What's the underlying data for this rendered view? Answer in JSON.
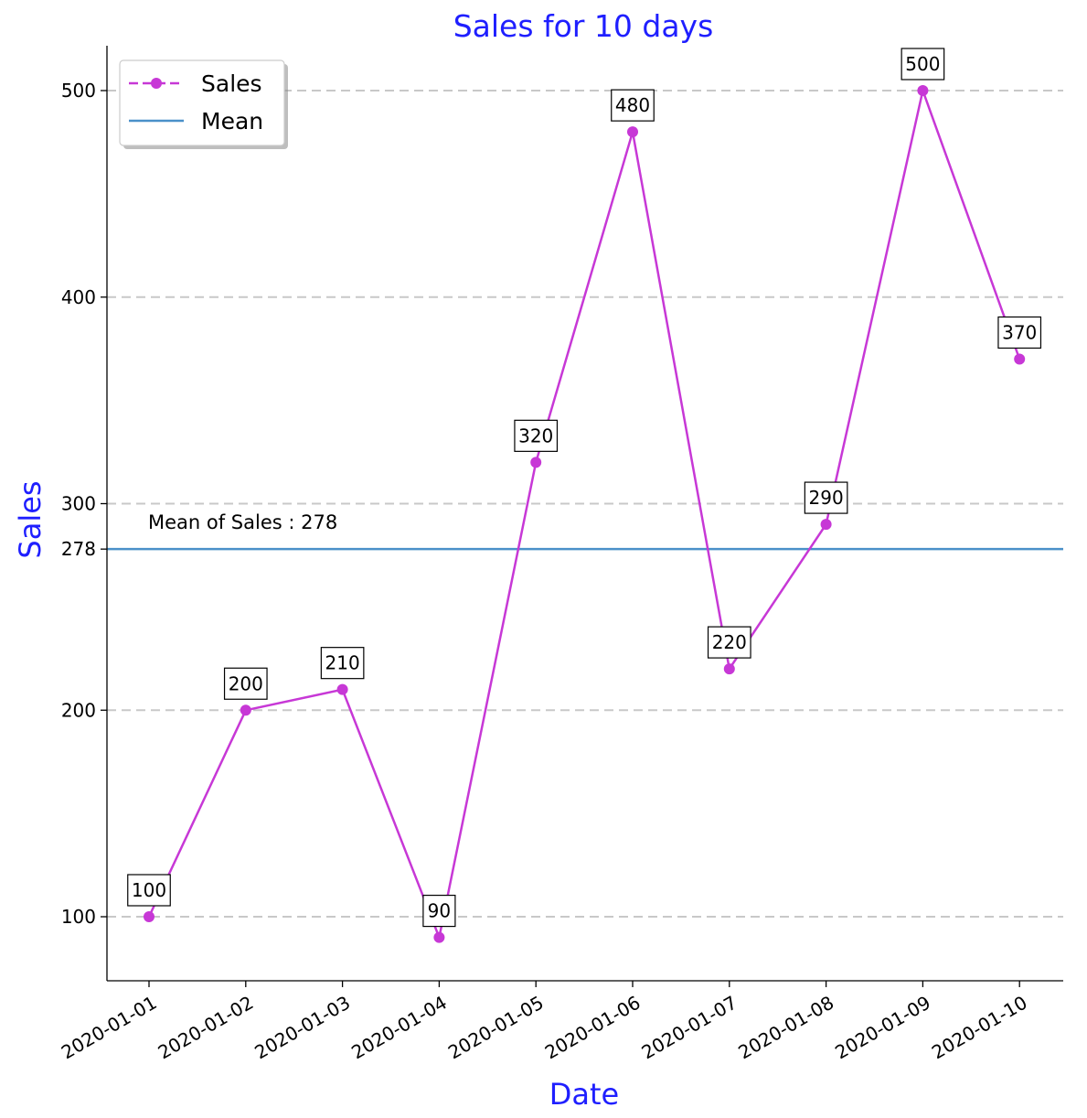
{
  "chart_data": {
    "type": "line",
    "title": "Sales for 10 days",
    "xlabel": "Date",
    "ylabel": "Sales",
    "categories": [
      "2020-01-01",
      "2020-01-02",
      "2020-01-03",
      "2020-01-04",
      "2020-01-05",
      "2020-01-06",
      "2020-01-07",
      "2020-01-08",
      "2020-01-09",
      "2020-01-10"
    ],
    "series": [
      {
        "name": "Sales",
        "values": [
          100,
          200,
          210,
          90,
          320,
          480,
          220,
          290,
          500,
          370
        ]
      }
    ],
    "data_labels": [
      "100",
      "200",
      "210",
      "90",
      "320",
      "480",
      "220",
      "290",
      "500",
      "370"
    ],
    "mean": {
      "name": "Mean",
      "value": 278,
      "annotation": "Mean of Sales : 278"
    },
    "yticks": [
      100,
      200,
      278,
      300,
      400,
      500
    ],
    "ylim": [
      70,
      521
    ],
    "grid": "horizontal dashed at 100, 200, 300, 400, 500",
    "legend_position": "top-left",
    "colors": {
      "title": "#1f1fff",
      "axis_labels": "#1f1fff",
      "sales_line": "#c738d6",
      "mean_line": "#4a90c9",
      "grid": "#c8c8c8"
    }
  }
}
